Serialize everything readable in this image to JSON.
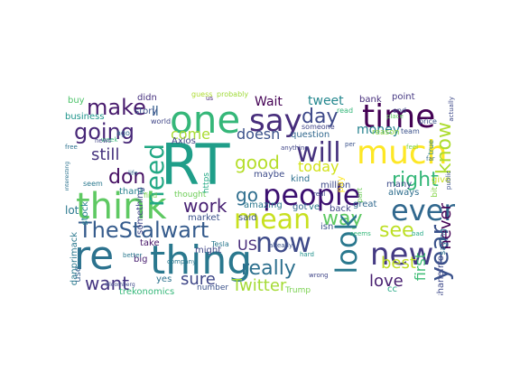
{
  "wordcloud": {
    "words": [
      {
        "text": "RT",
        "color": "#1f9e89"
      },
      {
        "text": "people",
        "color": "#3b0f70"
      },
      {
        "text": "one",
        "color": "#35b779"
      },
      {
        "text": "think",
        "color": "#5ec962"
      },
      {
        "text": "re",
        "color": "#2c728e"
      },
      {
        "text": "thing",
        "color": "#2a788e"
      },
      {
        "text": "much",
        "color": "#fde725"
      },
      {
        "text": "time",
        "color": "#440154"
      },
      {
        "text": "even",
        "color": "#31688e"
      },
      {
        "text": "new",
        "color": "#443a83"
      },
      {
        "text": "now",
        "color": "#3e4a89"
      },
      {
        "text": "mean",
        "color": "#c8e020"
      },
      {
        "text": "say",
        "color": "#472d7b"
      },
      {
        "text": "TheStalwart",
        "color": "#365c8d"
      },
      {
        "text": "need",
        "color": "#22a884"
      },
      {
        "text": "will",
        "color": "#46327e"
      },
      {
        "text": "make",
        "color": "#481b6d"
      },
      {
        "text": "going",
        "color": "#482878"
      },
      {
        "text": "day",
        "color": "#3e4989"
      },
      {
        "text": "work",
        "color": "#482173"
      },
      {
        "text": "really",
        "color": "#2d708e"
      },
      {
        "text": "good",
        "color": "#b5de2b"
      },
      {
        "text": "right",
        "color": "#35b779"
      },
      {
        "text": "way",
        "color": "#5ec962"
      },
      {
        "text": "look",
        "color": "#2a788e"
      },
      {
        "text": "know",
        "color": "#addc30"
      },
      {
        "text": "year",
        "color": "#3b528b"
      },
      {
        "text": "never",
        "color": "#440154"
      },
      {
        "text": "see",
        "color": "#bddf26"
      },
      {
        "text": "want",
        "color": "#453581"
      },
      {
        "text": "Twitter",
        "color": "#a5db36"
      },
      {
        "text": "still",
        "color": "#46337e"
      },
      {
        "text": "don",
        "color": "#471164"
      },
      {
        "text": "love",
        "color": "#481f70"
      },
      {
        "text": "go",
        "color": "#2e6e8e"
      },
      {
        "text": "today",
        "color": "#d2e21b"
      },
      {
        "text": "tweet",
        "color": "#24878e"
      },
      {
        "text": "sure",
        "color": "#3f4788"
      },
      {
        "text": "best",
        "color": "#c0df25"
      },
      {
        "text": "come",
        "color": "#aadc32"
      },
      {
        "text": "doesn",
        "color": "#3b528b"
      },
      {
        "text": "Wait",
        "color": "#440154"
      },
      {
        "text": "money",
        "color": "#26828e"
      },
      {
        "text": "US",
        "color": "#472c7a"
      },
      {
        "text": "first",
        "color": "#3dbc74"
      },
      {
        "text": "ll",
        "color": "#355f8d"
      },
      {
        "text": "something",
        "color": "#404688"
      },
      {
        "text": "stock",
        "color": "#26828e"
      },
      {
        "text": "market",
        "color": "#3b528b"
      },
      {
        "text": "maybe",
        "color": "#3e4c8a"
      },
      {
        "text": "amazing",
        "color": "#2a788e"
      },
      {
        "text": "question",
        "color": "#31688e"
      },
      {
        "text": "point",
        "color": "#453882"
      },
      {
        "text": "business",
        "color": "#1f958b"
      },
      {
        "text": "Axios",
        "color": "#414487"
      },
      {
        "text": "thank",
        "color": "#26818e"
      },
      {
        "text": "million",
        "color": "#3e4a89"
      },
      {
        "text": "great",
        "color": "#31688e"
      },
      {
        "text": "bank",
        "color": "#472e7c"
      },
      {
        "text": "didn",
        "color": "#46307e"
      },
      {
        "text": "story",
        "color": "#3b528b"
      },
      {
        "text": "lot",
        "color": "#2a788e"
      },
      {
        "text": "back",
        "color": "#404688"
      },
      {
        "text": "take",
        "color": "#481769"
      },
      {
        "text": "isn",
        "color": "#3b528b"
      },
      {
        "text": "use",
        "color": "#355f8d"
      },
      {
        "text": "yes",
        "color": "#2c728e"
      },
      {
        "text": "big",
        "color": "#481f70"
      },
      {
        "text": "might",
        "color": "#404688"
      },
      {
        "text": "said",
        "color": "#3b528b"
      },
      {
        "text": "kind",
        "color": "#2d708e"
      },
      {
        "text": "many",
        "color": "#3e4c8a"
      },
      {
        "text": "always",
        "color": "#2e6e8e"
      },
      {
        "text": "give",
        "color": "#c8e020"
      },
      {
        "text": "number",
        "color": "#3b528b"
      },
      {
        "text": "danprimack",
        "color": "#2a788e"
      },
      {
        "text": "shanefrro",
        "color": "#3e4989"
      },
      {
        "text": "trekonomics",
        "color": "#35b779"
      },
      {
        "text": "Trump",
        "color": "#7ad151"
      },
      {
        "text": "got",
        "color": "#31688e"
      },
      {
        "text": "ve",
        "color": "#2a788e"
      },
      {
        "text": "cc",
        "color": "#22a884"
      },
      {
        "text": "reason",
        "color": "#90d743"
      },
      {
        "text": "saying",
        "color": "#2c728e"
      },
      {
        "text": "price",
        "color": "#3b528b"
      },
      {
        "text": "someone",
        "color": "#404688"
      },
      {
        "text": "bit",
        "color": "#86d549"
      },
      {
        "text": "buy",
        "color": "#4ec36b"
      },
      {
        "text": "thought",
        "color": "#6ece58"
      },
      {
        "text": "probably",
        "color": "#a0da39"
      },
      {
        "text": "guess",
        "color": "#addc30"
      },
      {
        "text": "read",
        "color": "#35b779"
      },
      {
        "text": "https",
        "color": "#22a884"
      },
      {
        "text": "find",
        "color": "#7ad151"
      },
      {
        "text": "actually",
        "color": "#3e4989"
      },
      {
        "text": "world",
        "color": "#404688"
      },
      {
        "text": "seem",
        "color": "#2a788e"
      },
      {
        "text": "ago",
        "color": "#31688e"
      },
      {
        "text": "true",
        "color": "#26828e"
      },
      {
        "text": "part",
        "color": "#6ece58"
      },
      {
        "text": "pay",
        "color": "#fde725"
      },
      {
        "text": "team",
        "color": "#3b528b"
      },
      {
        "text": "free",
        "color": "#2c728e"
      },
      {
        "text": "week",
        "color": "#35b779"
      },
      {
        "text": "news",
        "color": "#414487"
      },
      {
        "text": "Tesla",
        "color": "#2a788e"
      },
      {
        "text": "place",
        "color": "#5ec962"
      },
      {
        "text": "end",
        "color": "#3e4a89"
      },
      {
        "text": "public",
        "color": "#3b528b"
      },
      {
        "text": "anything",
        "color": "#404688"
      },
      {
        "text": "company",
        "color": "#2a788e"
      },
      {
        "text": "far",
        "color": "#31688e"
      },
      {
        "text": "Bloomberg",
        "color": "#3e4989"
      },
      {
        "text": "hard",
        "color": "#21918c"
      },
      {
        "text": "interesting",
        "color": "#2c728e"
      },
      {
        "text": "feel",
        "color": "#7ad151"
      },
      {
        "text": "life",
        "color": "#31688e"
      },
      {
        "text": "already",
        "color": "#3b528b"
      },
      {
        "text": "seems",
        "color": "#35b779"
      },
      {
        "text": "us",
        "color": "#482878"
      },
      {
        "text": "better",
        "color": "#2a788e"
      },
      {
        "text": "real",
        "color": "#3e4a89"
      },
      {
        "text": "bad",
        "color": "#22a884"
      },
      {
        "text": "per",
        "color": "#3b528b"
      },
      {
        "text": "wrong",
        "color": "#404688"
      }
    ]
  }
}
